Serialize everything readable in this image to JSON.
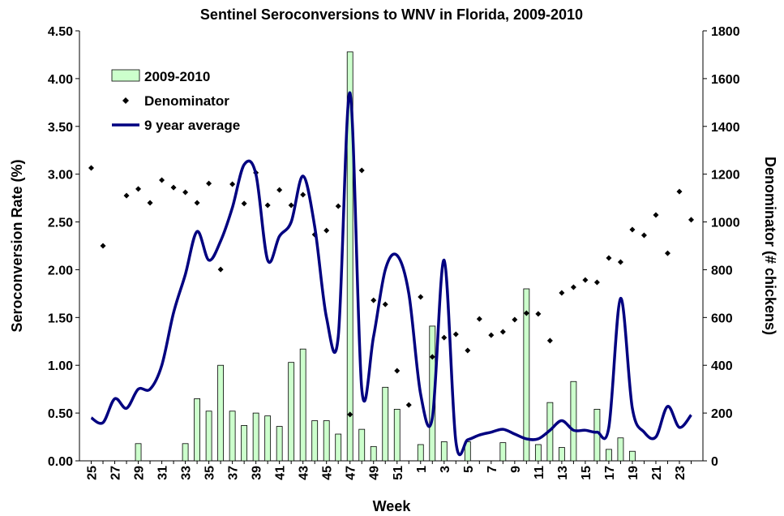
{
  "chart_data": {
    "type": "bar",
    "title": "Sentinel Seroconversions to WNV in Florida, 2009-2010",
    "x_label": "Week",
    "y_label": "Seroconversion Rate (%)",
    "y2_label": "Denominator (# chickens)",
    "categories": [
      "25",
      null,
      "27",
      null,
      "29",
      null,
      "31",
      null,
      "33",
      null,
      "35",
      null,
      "37",
      null,
      "39",
      null,
      "41",
      null,
      "43",
      null,
      "45",
      null,
      "47",
      null,
      "49",
      null,
      "51",
      null,
      "1",
      null,
      "3",
      null,
      "5",
      null,
      "7",
      null,
      "9",
      null,
      "11",
      null,
      "13",
      null,
      "15",
      null,
      "17",
      null,
      "19",
      null,
      "21",
      null,
      "23",
      null
    ],
    "series": [
      {
        "name": "2009-2010",
        "type": "bar",
        "color": "#ccffcc",
        "values": [
          0,
          0,
          0,
          0,
          0.18,
          0,
          0,
          0,
          0.18,
          0.65,
          0.52,
          1.0,
          0.52,
          0.37,
          0.5,
          0.47,
          0.36,
          1.03,
          1.17,
          0.42,
          0.42,
          0.28,
          4.28,
          0.33,
          0.15,
          0.77,
          0.54,
          0,
          0.17,
          1.41,
          0.2,
          0,
          0.2,
          0,
          0,
          0.19,
          0,
          1.8,
          0.17,
          0.61,
          0.14,
          0.83,
          0,
          0.54,
          0.12,
          0.24,
          0.1,
          0,
          0,
          0,
          0,
          0
        ]
      },
      {
        "name": "Denominator",
        "type": "scatter",
        "axis": "y2",
        "color": "#000000",
        "values": [
          1226,
          900,
          null,
          1110,
          1138,
          1080,
          1175,
          1144,
          1124,
          1080,
          1161,
          801,
          1158,
          1077,
          1206,
          1070,
          1134,
          1070,
          1114,
          947,
          964,
          1066,
          194,
          1216,
          672,
          655,
          377,
          234,
          686,
          435,
          516,
          530,
          462,
          594,
          526,
          540,
          591,
          618,
          615,
          503,
          703,
          727,
          757,
          747,
          849,
          832,
          968,
          944,
          1029,
          869,
          1127,
          1009
        ]
      },
      {
        "name": "9 year average",
        "type": "line",
        "color": "#000080",
        "values": [
          0.45,
          0.4,
          0.65,
          0.55,
          0.75,
          0.75,
          1.0,
          1.55,
          1.95,
          2.4,
          2.1,
          2.3,
          2.65,
          3.1,
          3.0,
          2.1,
          2.35,
          2.5,
          2.98,
          2.45,
          1.5,
          1.3,
          3.85,
          0.75,
          1.3,
          2.0,
          2.15,
          1.75,
          0.7,
          0.45,
          2.1,
          0.2,
          0.22,
          0.27,
          0.3,
          0.33,
          0.28,
          0.23,
          0.23,
          0.32,
          0.42,
          0.32,
          0.32,
          0.3,
          0.35,
          1.7,
          0.55,
          0.3,
          0.25,
          0.57,
          0.35,
          0.48
        ]
      }
    ],
    "ylim": [
      0,
      4.5
    ],
    "yticks": [
      {
        "value": 0,
        "label": "0.00"
      },
      {
        "value": 0.5,
        "label": "0.50"
      },
      {
        "value": 1,
        "label": "1.00"
      },
      {
        "value": 1.5,
        "label": "1.50"
      },
      {
        "value": 2,
        "label": "2.00"
      },
      {
        "value": 2.5,
        "label": "2.50"
      },
      {
        "value": 3,
        "label": "3.00"
      },
      {
        "value": 3.5,
        "label": "3.50"
      },
      {
        "value": 4,
        "label": "4.00"
      },
      {
        "value": 4.5,
        "label": "4.50"
      }
    ],
    "y2lim": [
      0,
      1800
    ],
    "y2ticks": [
      0,
      200,
      400,
      600,
      800,
      1000,
      1200,
      1400,
      1600,
      1800
    ],
    "grid": false,
    "legend": "upper left"
  }
}
